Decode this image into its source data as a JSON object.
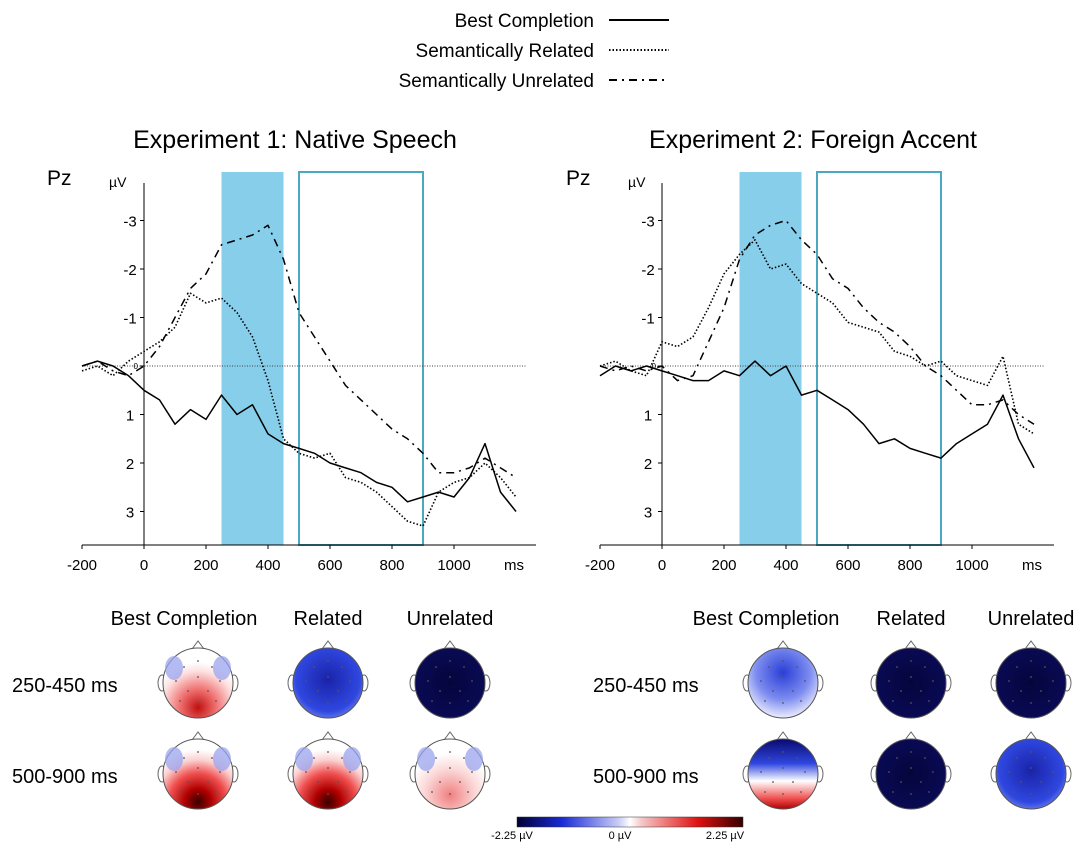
{
  "legend": {
    "entries": [
      {
        "label": "Best Completion",
        "style": "solid"
      },
      {
        "label": "Semantically Related",
        "style": "dotted"
      },
      {
        "label": "Semantically Unrelated",
        "style": "dashdot"
      }
    ]
  },
  "topomap": {
    "conditions": [
      "Best Completion",
      "Related",
      "Unrelated"
    ],
    "windows": [
      "250-450 ms",
      "500-900 ms"
    ],
    "colorbar": {
      "min_label": "-2.25 µV",
      "mid_label": "0 µV",
      "max_label": "2.25 µV"
    }
  },
  "colors": {
    "shade": "#87CEEB",
    "box": "#4AA8C0",
    "negative": "#0a0a6e",
    "positive": "#8b0000"
  },
  "chart_data": [
    {
      "type": "line",
      "title": "Experiment 1: Native Speech",
      "channel_label": "Pz",
      "ylabel": "µV",
      "xlabel": "ms",
      "y_inverted": true,
      "xlim": [
        -200,
        1200
      ],
      "ylim": [
        -3.7,
        3.7
      ],
      "xticks": [
        -200,
        0,
        200,
        400,
        600,
        800,
        1000
      ],
      "yticks": [
        -3,
        -2,
        -1,
        0,
        1,
        2,
        3
      ],
      "ytick_labels": [
        "-3",
        "-2",
        "-1",
        "0",
        "1",
        "2",
        "3"
      ],
      "shaded_window": [
        250,
        450
      ],
      "outlined_window": [
        500,
        900
      ],
      "series": [
        {
          "name": "Best Completion",
          "style": "solid",
          "x": [
            -200,
            -150,
            -100,
            -50,
            0,
            50,
            100,
            150,
            200,
            250,
            300,
            350,
            400,
            450,
            500,
            550,
            600,
            650,
            700,
            750,
            800,
            850,
            900,
            950,
            1000,
            1050,
            1100,
            1150,
            1200
          ],
          "y": [
            0.0,
            -0.1,
            0.0,
            0.2,
            0.5,
            0.7,
            1.2,
            0.9,
            1.1,
            0.6,
            1.0,
            0.8,
            1.4,
            1.6,
            1.7,
            1.8,
            2.0,
            2.1,
            2.2,
            2.4,
            2.5,
            2.8,
            2.7,
            2.6,
            2.7,
            2.3,
            1.6,
            2.6,
            3.0
          ]
        },
        {
          "name": "Semantically Related",
          "style": "dotted",
          "x": [
            -200,
            -150,
            -100,
            -50,
            0,
            50,
            100,
            150,
            200,
            250,
            300,
            350,
            400,
            450,
            500,
            550,
            600,
            650,
            700,
            750,
            800,
            850,
            900,
            950,
            1000,
            1050,
            1100,
            1150,
            1200
          ],
          "y": [
            0.1,
            0.0,
            0.2,
            -0.1,
            -0.3,
            -0.5,
            -0.8,
            -1.5,
            -1.3,
            -1.4,
            -1.1,
            -0.6,
            0.3,
            1.5,
            1.8,
            1.9,
            1.8,
            2.3,
            2.4,
            2.6,
            2.9,
            3.2,
            3.3,
            2.6,
            2.4,
            2.3,
            2.0,
            2.3,
            2.7
          ]
        },
        {
          "name": "Semantically Unrelated",
          "style": "dashdot",
          "x": [
            -200,
            -150,
            -100,
            -50,
            0,
            50,
            100,
            150,
            200,
            250,
            300,
            350,
            400,
            450,
            500,
            550,
            600,
            650,
            700,
            750,
            800,
            850,
            900,
            950,
            1000,
            1050,
            1100,
            1150,
            1200
          ],
          "y": [
            0.0,
            -0.1,
            0.1,
            0.2,
            0.0,
            -0.4,
            -1.0,
            -1.6,
            -1.9,
            -2.5,
            -2.6,
            -2.7,
            -2.9,
            -2.2,
            -1.1,
            -0.6,
            -0.1,
            0.4,
            0.7,
            1.0,
            1.3,
            1.5,
            1.8,
            2.2,
            2.2,
            2.1,
            1.9,
            2.1,
            2.3
          ]
        }
      ]
    },
    {
      "type": "line",
      "title": "Experiment 2: Foreign Accent",
      "channel_label": "Pz",
      "ylabel": "µV",
      "xlabel": "ms",
      "y_inverted": true,
      "xlim": [
        -200,
        1200
      ],
      "ylim": [
        -3.7,
        3.7
      ],
      "xticks": [
        -200,
        0,
        200,
        400,
        600,
        800,
        1000
      ],
      "yticks": [
        -3,
        -2,
        -1,
        0,
        1,
        2,
        3
      ],
      "ytick_labels": [
        "-3",
        "-2",
        "-1",
        "0",
        "1",
        "2",
        "3"
      ],
      "shaded_window": [
        250,
        450
      ],
      "outlined_window": [
        500,
        900
      ],
      "series": [
        {
          "name": "Best Completion",
          "style": "solid",
          "x": [
            -200,
            -150,
            -100,
            -50,
            0,
            50,
            100,
            150,
            200,
            250,
            300,
            350,
            400,
            450,
            500,
            550,
            600,
            650,
            700,
            750,
            800,
            850,
            900,
            950,
            1000,
            1050,
            1100,
            1150,
            1200
          ],
          "y": [
            0.2,
            0.0,
            0.1,
            0.0,
            0.1,
            0.2,
            0.3,
            0.3,
            0.1,
            0.2,
            -0.1,
            0.2,
            0.0,
            0.6,
            0.5,
            0.7,
            0.9,
            1.2,
            1.6,
            1.5,
            1.7,
            1.8,
            1.9,
            1.6,
            1.4,
            1.2,
            0.6,
            1.5,
            2.1
          ]
        },
        {
          "name": "Semantically Related",
          "style": "dotted",
          "x": [
            -200,
            -150,
            -100,
            -50,
            0,
            50,
            100,
            150,
            200,
            250,
            300,
            350,
            400,
            450,
            500,
            550,
            600,
            650,
            700,
            750,
            800,
            850,
            900,
            950,
            1000,
            1050,
            1100,
            1150,
            1200
          ],
          "y": [
            0.0,
            -0.1,
            0.1,
            0.2,
            -0.5,
            -0.4,
            -0.6,
            -1.2,
            -1.9,
            -2.3,
            -2.6,
            -2.0,
            -2.1,
            -1.7,
            -1.5,
            -1.3,
            -0.9,
            -0.8,
            -0.7,
            -0.3,
            -0.2,
            0.0,
            -0.1,
            0.2,
            0.3,
            0.4,
            -0.2,
            1.2,
            1.4
          ]
        },
        {
          "name": "Semantically Unrelated",
          "style": "dashdot",
          "x": [
            -200,
            -150,
            -100,
            -50,
            0,
            50,
            100,
            150,
            200,
            250,
            300,
            350,
            400,
            450,
            500,
            550,
            600,
            650,
            700,
            750,
            800,
            850,
            900,
            950,
            1000,
            1050,
            1100,
            1150,
            1200
          ],
          "y": [
            0.0,
            0.1,
            0.0,
            0.1,
            0.0,
            0.3,
            0.2,
            -0.5,
            -1.2,
            -2.2,
            -2.7,
            -2.9,
            -3.0,
            -2.6,
            -2.3,
            -1.8,
            -1.6,
            -1.2,
            -0.9,
            -0.7,
            -0.4,
            0.0,
            0.2,
            0.5,
            0.8,
            0.8,
            0.7,
            1.0,
            1.2
          ]
        }
      ]
    }
  ]
}
